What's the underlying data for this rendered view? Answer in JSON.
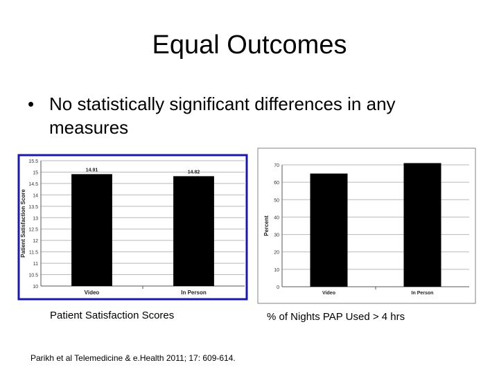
{
  "slide": {
    "title": "Equal Outcomes",
    "bullet_symbol": "•",
    "bullet": "No statistically significant differences in any measures",
    "citation": "Parikh et al Telemedicine & e.Health 2011; 17: 609-614."
  },
  "chart_data": [
    {
      "type": "bar",
      "caption": "Patient Satisfaction Scores",
      "ylabel": "Patient Satisfaction Score",
      "categories": [
        "Video",
        "In Person"
      ],
      "values": [
        14.91,
        14.82
      ],
      "value_labels": [
        "14.91",
        "14.82"
      ],
      "ylim": [
        10,
        15.5
      ],
      "yticks": [
        "10",
        "10.5",
        "11",
        "11.5",
        "12",
        "12.5",
        "13",
        "13.5",
        "14",
        "14.5",
        "15",
        "15.5"
      ],
      "grid": true,
      "colors": {
        "bar": "#000000",
        "frame": "#1a1aa6",
        "grid": "#b8b8b8"
      }
    },
    {
      "type": "bar",
      "caption": "% of Nights PAP Used > 4 hrs",
      "ylabel": "Percent",
      "categories": [
        "Video",
        "In Person"
      ],
      "values": [
        65,
        71
      ],
      "ylim": [
        0,
        70
      ],
      "yticks": [
        "0",
        "10",
        "20",
        "30",
        "40",
        "50",
        "60",
        "70"
      ],
      "grid": true,
      "colors": {
        "bar": "#000000",
        "frame": "#808080",
        "grid": "#b8b8b8"
      }
    }
  ]
}
